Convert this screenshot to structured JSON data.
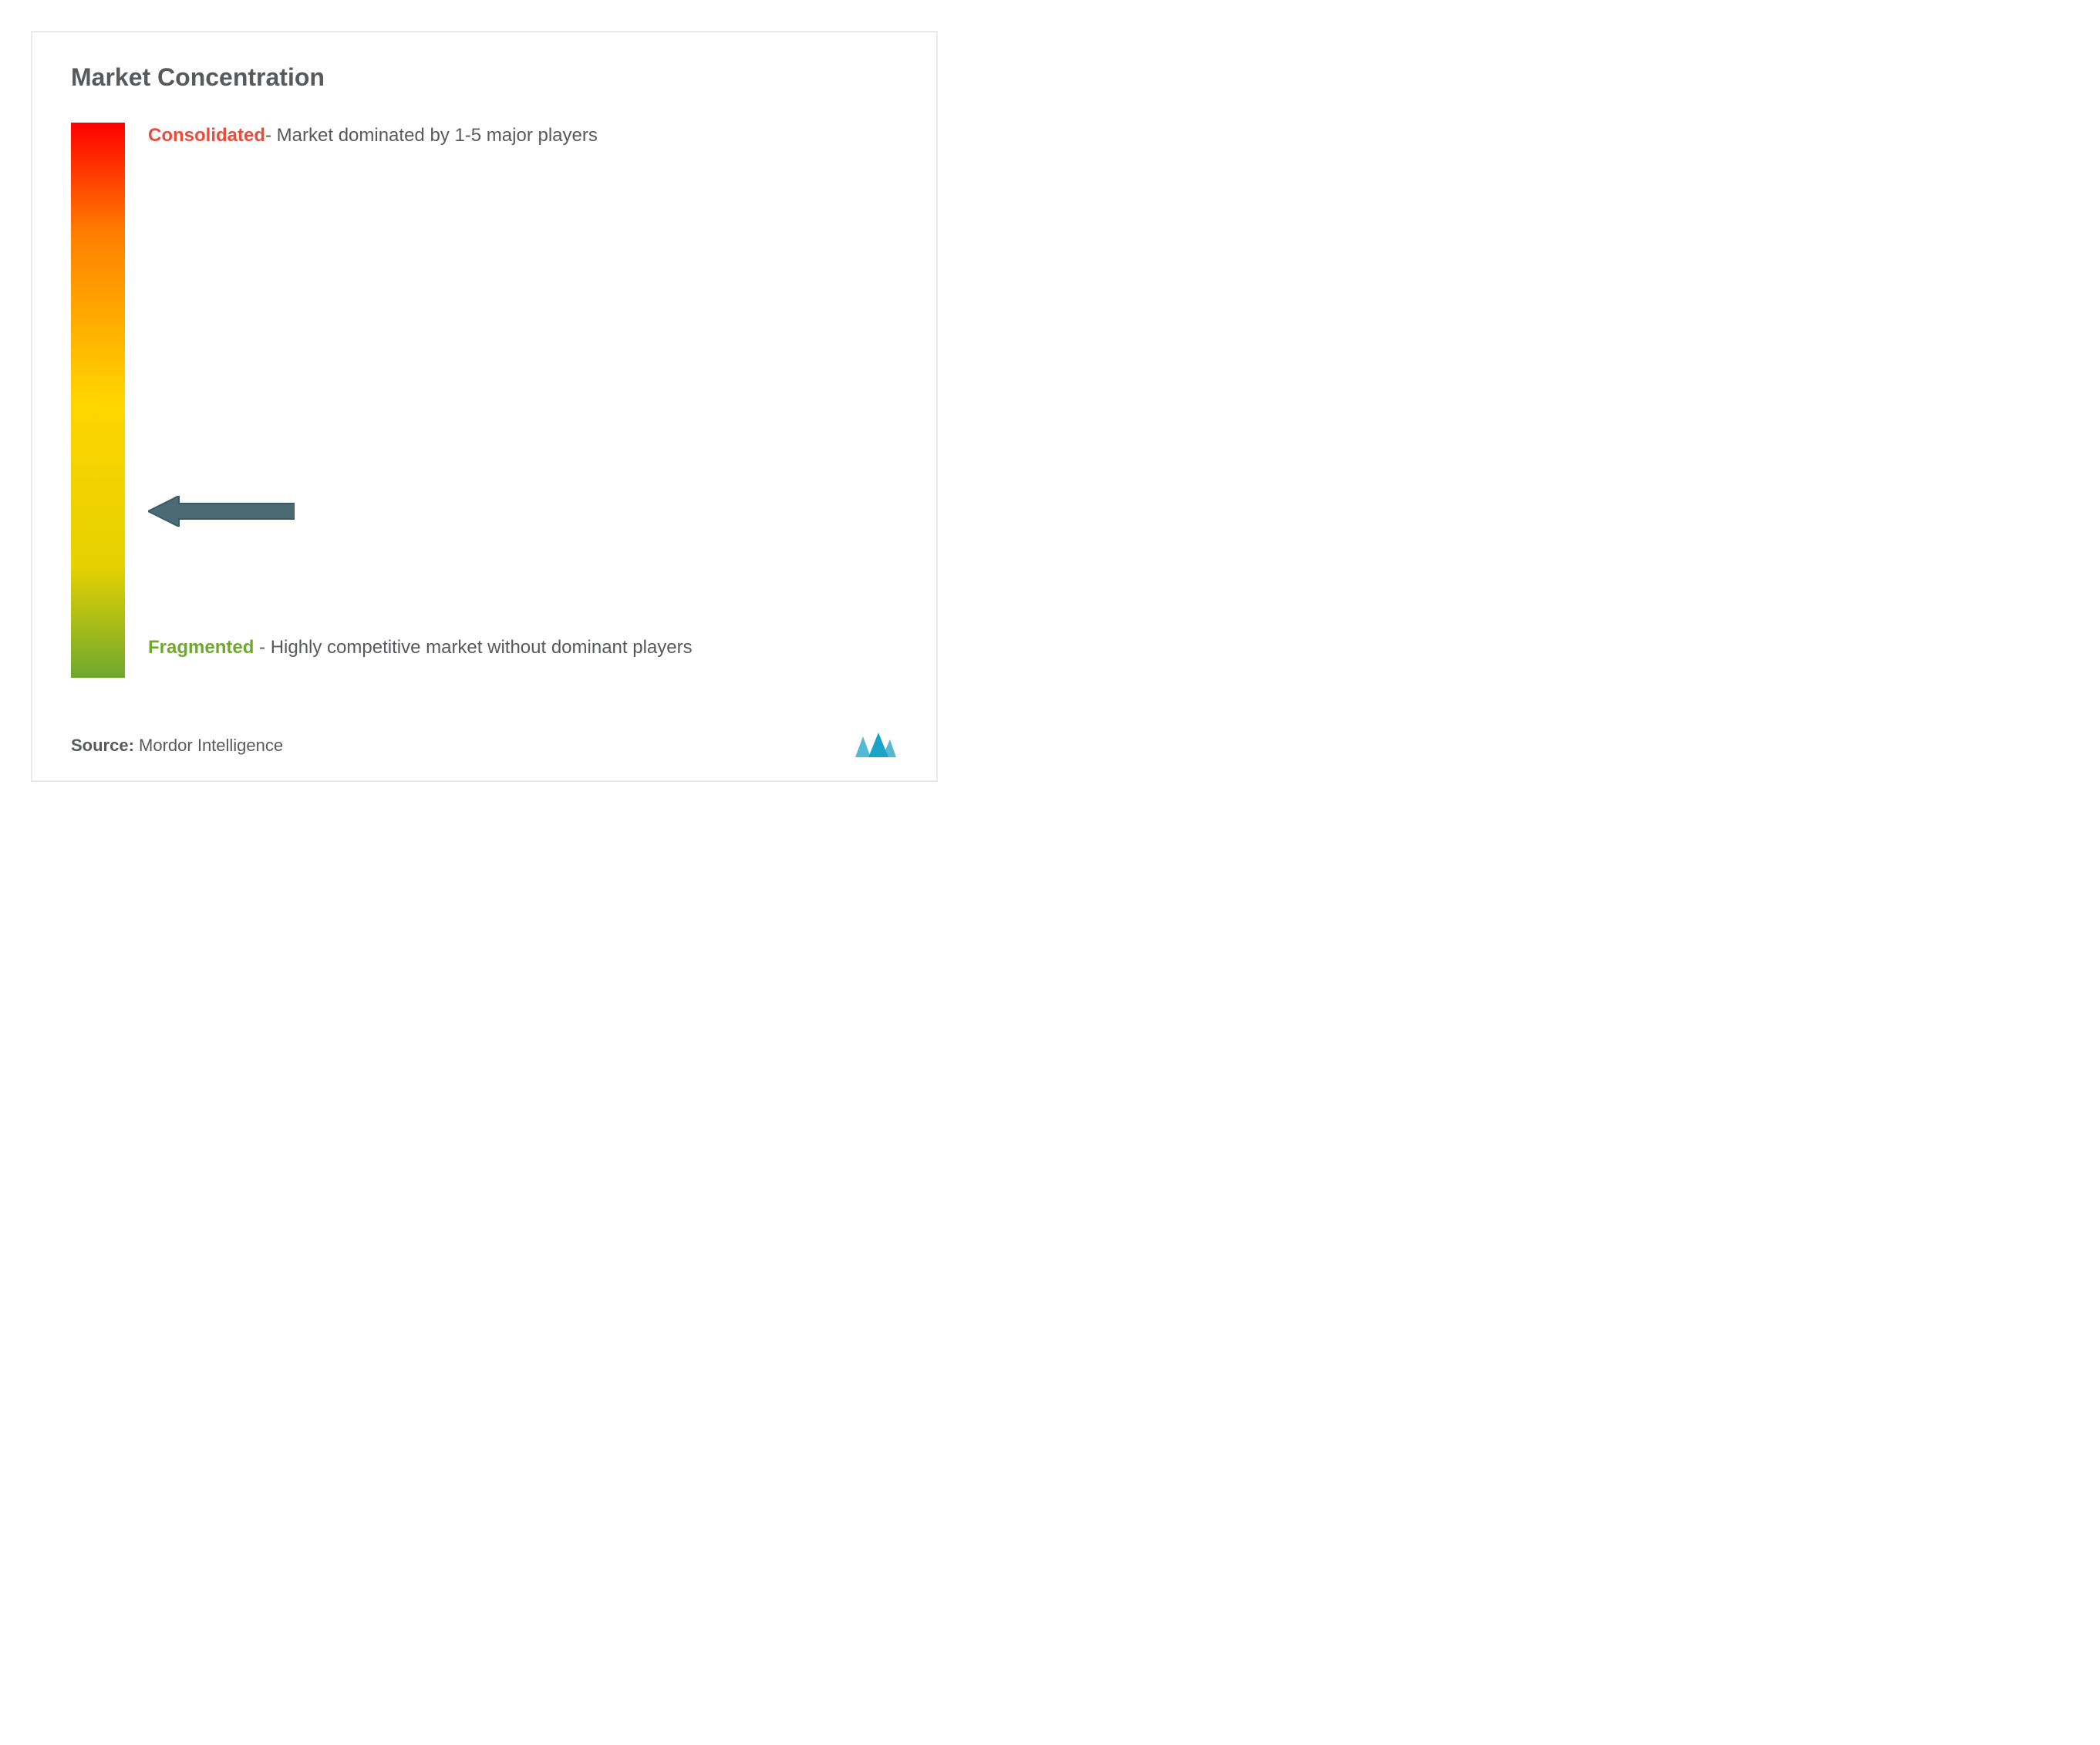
{
  "title": "Market Concentration",
  "gradient": {
    "top_color": "#ff0000",
    "mid1_color": "#ff7f00",
    "mid2_color": "#ffd500",
    "mid3_color": "#e5d100",
    "bottom_color": "#6fa82e"
  },
  "top_label": {
    "highlight_text": "Consolidated",
    "highlight_color": "#e74c3c",
    "rest_text": "- Market dominated by 1-5 major players"
  },
  "bottom_label": {
    "highlight_text": "Fragmented",
    "highlight_color": "#6fa82e",
    "rest_text": " - Highly competitive market without dominant players"
  },
  "arrow": {
    "position_percent": 70,
    "fill_color": "#4a6a74",
    "stroke_color": "#3a5a64"
  },
  "source": {
    "label": "Source: ",
    "name": "Mordor Intelligence"
  },
  "logo_color": "#1ba3c6"
}
